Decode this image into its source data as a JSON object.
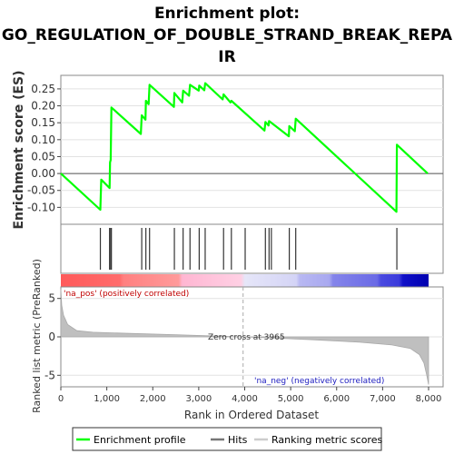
{
  "chart_data": {
    "type": "line",
    "title_line1": "Enrichment plot:",
    "title_line2": "GO_REGULATION_OF_DOUBLE_STRAND_BREAK_REPA",
    "title_line3": "IR",
    "top_panel": {
      "ylabel": "Enrichment score (ES)",
      "ylim": [
        -0.15,
        0.29
      ],
      "yticks": [
        "0.25",
        "0.20",
        "0.15",
        "0.10",
        "0.05",
        "0.00",
        "-0.05",
        "-0.10"
      ],
      "ytick_values": [
        0.25,
        0.2,
        0.15,
        0.1,
        0.05,
        0.0,
        -0.05,
        -0.1
      ],
      "series": [
        {
          "name": "Enrichment profile",
          "color": "#00ff00",
          "points": [
            [
              0,
              0.0
            ],
            [
              860,
              -0.107
            ],
            [
              880,
              -0.018
            ],
            [
              1060,
              -0.043
            ],
            [
              1070,
              0.033
            ],
            [
              1085,
              0.04
            ],
            [
              1100,
              0.195
            ],
            [
              1740,
              0.117
            ],
            [
              1760,
              0.172
            ],
            [
              1840,
              0.159
            ],
            [
              1850,
              0.215
            ],
            [
              1910,
              0.205
            ],
            [
              1930,
              0.262
            ],
            [
              2460,
              0.197
            ],
            [
              2470,
              0.238
            ],
            [
              2640,
              0.21
            ],
            [
              2660,
              0.245
            ],
            [
              2790,
              0.23
            ],
            [
              2810,
              0.262
            ],
            [
              3000,
              0.245
            ],
            [
              3010,
              0.26
            ],
            [
              3120,
              0.246
            ],
            [
              3140,
              0.267
            ],
            [
              3520,
              0.219
            ],
            [
              3540,
              0.234
            ],
            [
              3690,
              0.21
            ],
            [
              3710,
              0.215
            ],
            [
              4430,
              0.127
            ],
            [
              4450,
              0.152
            ],
            [
              4520,
              0.142
            ],
            [
              4530,
              0.155
            ],
            [
              4960,
              0.11
            ],
            [
              4970,
              0.14
            ],
            [
              5090,
              0.125
            ],
            [
              5110,
              0.162
            ],
            [
              7300,
              -0.113
            ],
            [
              7310,
              0.085
            ],
            [
              7980,
              0.0
            ]
          ]
        }
      ]
    },
    "hits": {
      "name": "Hits",
      "ranks": [
        860,
        1060,
        1085,
        1100,
        1760,
        1850,
        1930,
        2470,
        2660,
        2810,
        3010,
        3140,
        3540,
        3710,
        4010,
        4450,
        4530,
        4580,
        4970,
        5110,
        7310
      ]
    },
    "ranked_metric": {
      "name": "Ranking metric scores",
      "ylabel": "Ranked list metric (PreRanked)",
      "ylim": [
        -6.5,
        6.5
      ],
      "yticks": [
        "5",
        "0",
        "-5"
      ],
      "ytick_values": [
        5,
        0,
        -5
      ],
      "zero_cross_label": "Zero cross at 3965",
      "zero_cross": 3965,
      "pos_label": "'na_pos' (positively correlated)",
      "neg_label": "'na_neg' (negatively correlated)",
      "points": [
        [
          0,
          6.2
        ],
        [
          20,
          4.1
        ],
        [
          60,
          2.8
        ],
        [
          150,
          1.6
        ],
        [
          350,
          0.8
        ],
        [
          700,
          0.6
        ],
        [
          1500,
          0.45
        ],
        [
          2500,
          0.28
        ],
        [
          3500,
          0.08
        ],
        [
          3965,
          0.0
        ],
        [
          4500,
          -0.12
        ],
        [
          5500,
          -0.38
        ],
        [
          6500,
          -0.7
        ],
        [
          7200,
          -1.05
        ],
        [
          7600,
          -1.5
        ],
        [
          7800,
          -2.3
        ],
        [
          7900,
          -3.4
        ],
        [
          7960,
          -5.0
        ],
        [
          8000,
          -6.2
        ]
      ]
    },
    "xlabel": "Rank in Ordered Dataset",
    "xlim": [
      0,
      8000
    ],
    "xticks": [
      "0",
      "1,000",
      "2,000",
      "3,000",
      "4,000",
      "5,000",
      "6,000",
      "7,000",
      "8,000"
    ],
    "xtick_values": [
      0,
      1000,
      2000,
      3000,
      4000,
      5000,
      6000,
      7000,
      8000
    ],
    "legend": {
      "placement": "bottom",
      "items": [
        "Enrichment profile",
        "Hits",
        "Ranking metric scores"
      ]
    }
  }
}
